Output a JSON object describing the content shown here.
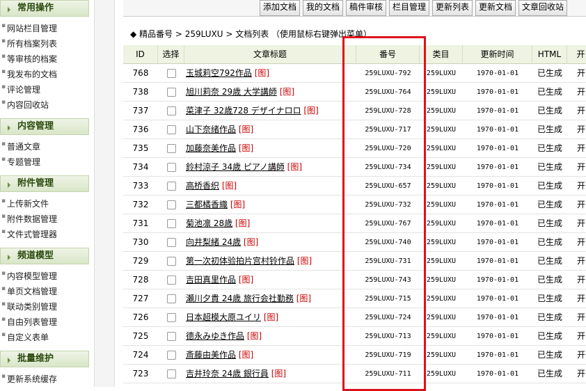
{
  "sidebar": [
    {
      "title": "常用操作",
      "items": [
        "网站栏目管理",
        "所有档案列表",
        "等审核的档案",
        "我发布的文档",
        "评论管理",
        "内容回收站"
      ]
    },
    {
      "title": "内容管理",
      "items": [
        "普通文章",
        "专题管理"
      ]
    },
    {
      "title": "附件管理",
      "items": [
        "上传新文件",
        "附件数据管理",
        "文件式管理器"
      ]
    },
    {
      "title": "频道模型",
      "items": [
        "内容模型管理",
        "单页文档管理",
        "联动类别管理",
        "自由列表管理",
        "自定义表单"
      ]
    },
    {
      "title": "批量维护",
      "items": [
        "更新系统缓存"
      ]
    }
  ],
  "toolbar": [
    "添加文档",
    "我的文档",
    "稿件审核",
    "栏目管理",
    "更新列表",
    "更新文档",
    "文章回收站"
  ],
  "breadcrumb": {
    "marker": "◆",
    "path": "精品番号 > 259LUXU > 文档列表",
    "hint": "（使用鼠标右键弹出菜单）"
  },
  "table": {
    "headers": [
      "ID",
      "选择",
      "文章标题",
      "番号",
      "类目",
      "更新时间",
      "HTML",
      "开"
    ],
    "tag": "[图]",
    "rows": [
      [
        "768",
        "玉城莉空792作品",
        "259LUXU-792",
        "259LUXU",
        "1970-01-01",
        "已生成",
        "开"
      ],
      [
        "738",
        "旭川莉奈 29歳 大学講師",
        "259LUXU-764",
        "259LUXU",
        "1970-01-01",
        "已生成",
        "开"
      ],
      [
        "737",
        "菜津子 32歳728 デザイナロロ",
        "259LUXU-728",
        "259LUXU",
        "1970-01-01",
        "已生成",
        "开"
      ],
      [
        "736",
        "山下奈绪作品",
        "259LUXU-717",
        "259LUXU",
        "1970-01-01",
        "已生成",
        "开"
      ],
      [
        "735",
        "加藤奈美作品",
        "259LUXU-720",
        "259LUXU",
        "1970-01-01",
        "已生成",
        "开"
      ],
      [
        "734",
        "鈴村涼子 34歳 ピアノ講師",
        "259LUXU-734",
        "259LUXU",
        "1970-01-01",
        "已生成",
        "开"
      ],
      [
        "733",
        "高桥香织",
        "259LUXU-657",
        "259LUXU",
        "1970-01-01",
        "已生成",
        "开"
      ],
      [
        "732",
        "三都橘香織",
        "259LUXU-732",
        "259LUXU",
        "1970-01-01",
        "已生成",
        "开"
      ],
      [
        "731",
        "菊池凛 28歳",
        "259LUXU-767",
        "259LUXU",
        "1970-01-01",
        "已生成",
        "开"
      ],
      [
        "730",
        "向井梨緒 24歳",
        "259LUXU-740",
        "259LUXU",
        "1970-01-01",
        "已生成",
        "开"
      ],
      [
        "729",
        "第一次初体验拍片宫村铃作品",
        "259LUXU-731",
        "259LUXU",
        "1970-01-01",
        "已生成",
        "开"
      ],
      [
        "728",
        "吉田真里作品",
        "259LUXU-743",
        "259LUXU",
        "1970-01-01",
        "已生成",
        "开"
      ],
      [
        "727",
        "瀬川夕貴 24歳 旅行会社勤務",
        "259LUXU-715",
        "259LUXU",
        "1970-01-01",
        "已生成",
        "开"
      ],
      [
        "726",
        "日本超模大原ユイリ",
        "259LUXU-724",
        "259LUXU",
        "1970-01-01",
        "已生成",
        "开"
      ],
      [
        "725",
        "德永みゆき作品",
        "259LUXU-713",
        "259LUXU",
        "1970-01-01",
        "已生成",
        "开"
      ],
      [
        "724",
        "斎藤由美作品",
        "259LUXU-719",
        "259LUXU",
        "1970-01-01",
        "已生成",
        "开"
      ],
      [
        "723",
        "吉井玲奈 24歳 銀行員",
        "259LUXU-711",
        "259LUXU",
        "1970-01-01",
        "已生成",
        "开"
      ]
    ]
  }
}
